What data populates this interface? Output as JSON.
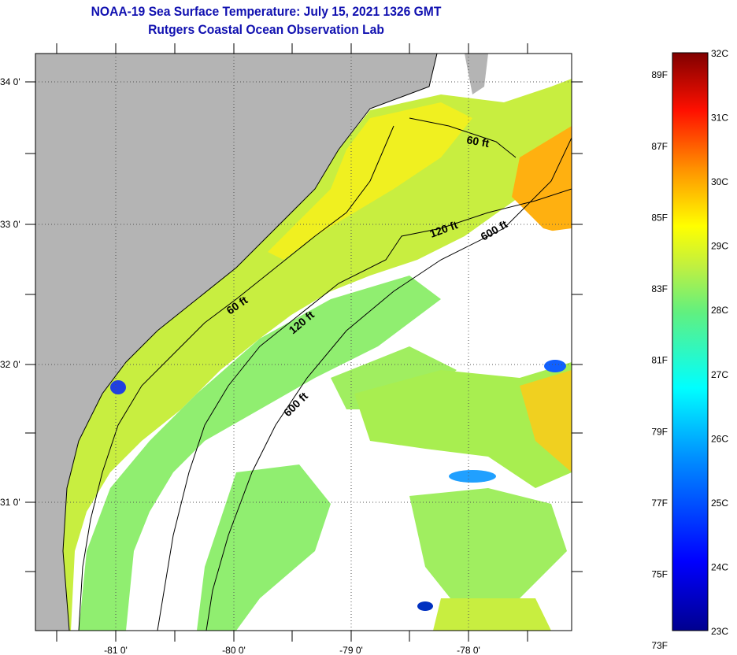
{
  "header": {
    "title": "NOAA-19 Sea Surface Temperature:  July 15, 2021 1326 GMT",
    "subtitle": "Rutgers Coastal Ocean Observation Lab"
  },
  "map": {
    "lon_labels": [
      "-81 0'",
      "-80 0'",
      "-79 0'",
      "-78 0'"
    ],
    "lat_labels": [
      "34 0'",
      "33 0'",
      "32 0'",
      "31 0'"
    ],
    "contour_labels": [
      "60 ft",
      "120 ft",
      "600 ft",
      "60 ft",
      "120 ft",
      "600 ft"
    ],
    "colors": {
      "land": "#b4b4b4",
      "cloud": "#ffffff"
    }
  },
  "colorbar": {
    "fahrenheit": [
      "89F",
      "87F",
      "85F",
      "83F",
      "81F",
      "79F",
      "77F",
      "75F",
      "73F"
    ],
    "celsius": [
      "32C",
      "31C",
      "30C",
      "29C",
      "28C",
      "27C",
      "26C",
      "25C",
      "24C",
      "23C"
    ],
    "range_c": [
      23,
      32
    ]
  }
}
